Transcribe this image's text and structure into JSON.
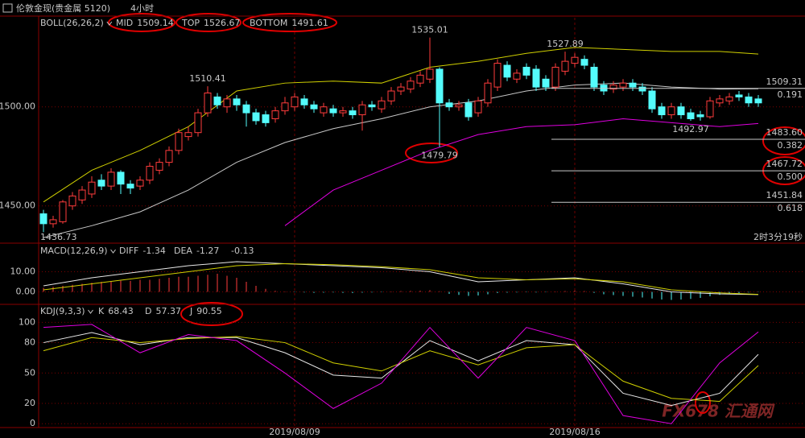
{
  "header": {
    "instrument": "伦敦金现(贵金属 5120)",
    "period": "4小时"
  },
  "watermark": "FX678 汇通网",
  "chart_data": [
    {
      "type": "candlestick",
      "title": "BOLL(26,26,2)",
      "categories": [
        null,
        null,
        null,
        null,
        null,
        null,
        null,
        null,
        null,
        null,
        null,
        null,
        null,
        null,
        null,
        null,
        null,
        null,
        null,
        null,
        null,
        null,
        null,
        null,
        null,
        null,
        "2019/08/09",
        null,
        null,
        null,
        null,
        null,
        null,
        null,
        null,
        null,
        null,
        null,
        null,
        null,
        null,
        null,
        null,
        null,
        null,
        null,
        null,
        null,
        null,
        null,
        null,
        null,
        null,
        null,
        null,
        "2019/08/16",
        null,
        null,
        null,
        null,
        null,
        null,
        null,
        null,
        null,
        null,
        null,
        null,
        null,
        null,
        null,
        null,
        null,
        null,
        null
      ],
      "open": [
        1446,
        1441,
        1442,
        1450,
        1453,
        1456,
        1463,
        1460,
        1467,
        1461,
        1460,
        1463,
        1468,
        1472,
        1478,
        1485,
        1487,
        1497,
        1505,
        1500,
        1504,
        1501,
        1497,
        1496,
        1494,
        1498,
        1500,
        1504,
        1501,
        1497,
        1499,
        1497,
        1498,
        1496,
        1501,
        1499,
        1503,
        1508,
        1509,
        1512,
        1514,
        1519,
        1502,
        1500,
        1502,
        1497,
        1502,
        1510,
        1521,
        1514,
        1520,
        1519,
        1514,
        1510,
        1518,
        1522,
        1524,
        1520,
        1511,
        1509,
        1510,
        1512,
        1510,
        1508,
        1500,
        1496,
        1500,
        1497,
        1496,
        1495,
        1502,
        1503,
        1506,
        1505,
        1504
      ],
      "high": [
        1448,
        1445,
        1453,
        1457,
        1460,
        1465,
        1466,
        1469,
        1468,
        1463,
        1465,
        1472,
        1474,
        1480,
        1489,
        1490,
        1499,
        1510.41,
        1507,
        1506,
        1506,
        1503,
        1499,
        1498,
        1500,
        1505,
        1507,
        1506,
        1503,
        1502,
        1501,
        1500,
        1500,
        1503,
        1503,
        1505,
        1510,
        1512,
        1515,
        1518,
        1535.01,
        1520,
        1504,
        1503,
        1504,
        1505,
        1514,
        1524,
        1523,
        1519,
        1522,
        1521,
        1516,
        1522,
        1527.89,
        1527,
        1526,
        1522,
        1513,
        1513,
        1514,
        1514,
        1512,
        1510,
        1502,
        1502,
        1502,
        1499,
        1498,
        1505,
        1506,
        1507,
        1508,
        1507,
        1506
      ],
      "low": [
        1436.73,
        1439,
        1441,
        1448,
        1451,
        1454,
        1458,
        1458,
        1456,
        1456,
        1458,
        1461,
        1466,
        1470,
        1476,
        1483,
        1485,
        1495,
        1499,
        1497,
        1498,
        1490,
        1491,
        1490,
        1492,
        1496,
        1498,
        1499,
        1497,
        1495,
        1495,
        1495,
        1494,
        1488,
        1498,
        1497,
        1501,
        1506,
        1507,
        1510,
        1512,
        1479.79,
        1498,
        1498,
        1493,
        1495,
        1500,
        1508,
        1513,
        1512,
        1514,
        1508,
        1508,
        1508,
        1516,
        1520,
        1519,
        1508,
        1506,
        1507,
        1508,
        1508,
        1506,
        1497,
        1494,
        1494,
        1494,
        1492.97,
        1493,
        1494,
        1500,
        1501,
        1503,
        1500,
        1500
      ],
      "close": [
        1441,
        1443,
        1452,
        1455,
        1458,
        1462,
        1460,
        1467,
        1461,
        1459,
        1463,
        1470,
        1472,
        1478,
        1487,
        1487,
        1497,
        1507,
        1501,
        1504,
        1501,
        1497,
        1493,
        1492,
        1498,
        1502,
        1505,
        1501,
        1499,
        1500,
        1497,
        1498,
        1496,
        1501,
        1500,
        1503,
        1508,
        1510,
        1513,
        1516,
        1519,
        1502,
        1500,
        1501,
        1495,
        1503,
        1512,
        1522,
        1515,
        1517,
        1516,
        1510,
        1510,
        1520,
        1523,
        1525,
        1521,
        1510,
        1508,
        1511,
        1512,
        1510,
        1508,
        1499,
        1496,
        1500,
        1496,
        1494,
        1495,
        1503,
        1504,
        1505,
        1505,
        1502,
        1502
      ],
      "up_color": "#ff3c3c",
      "down_color": "#54fcfc",
      "ylim": [
        1432,
        1545
      ],
      "yticks": [
        {
          "value": 1450,
          "label": "1450.00"
        },
        {
          "value": 1500,
          "label": "1500.00"
        }
      ],
      "grid": true,
      "bands": {
        "x": [
          0,
          5,
          10,
          15,
          20,
          25,
          30,
          35,
          40,
          45,
          50,
          55,
          60,
          65,
          70,
          74
        ],
        "series": [
          {
            "name": "MID",
            "color": "#c8c8c8",
            "values": [
              1434,
              1440,
              1447,
              1458,
              1472,
              1482,
              1489,
              1494,
              1500,
              1503,
              1508,
              1511,
              1512,
              1510,
              1509,
              1509.14
            ]
          },
          {
            "name": "TOP",
            "color": "#d0d000",
            "values": [
              1452,
              1468,
              1478,
              1490,
              1508,
              1512,
              1513,
              1512,
              1520,
              1523,
              1527,
              1530,
              1529,
              1528,
              1528,
              1526.67
            ]
          },
          {
            "name": "BOTTOM",
            "color": "#e000e0",
            "values": [
              null,
              null,
              null,
              null,
              null,
              1440,
              1458,
              1468,
              1478,
              1486,
              1490,
              1491,
              1494,
              1492,
              1490,
              1491.61
            ]
          }
        ]
      },
      "annotated_highs": [
        17,
        40,
        54
      ],
      "annotated_lows": [
        41,
        67,
        0
      ],
      "levels": [
        {
          "price": 1509.31,
          "ratio": 0.191
        },
        {
          "price": {
            "value": 1483.6,
            "label": "1483.60"
          },
          "ratio": 0.382
        },
        {
          "price": 1467.72,
          "ratio": {
            "value": 0.5,
            "label": "0.500"
          }
        },
        {
          "price": 1451.84,
          "ratio": 0.618
        }
      ],
      "timer": "2时3分19秒"
    },
    {
      "type": "macd",
      "title": "MACD(12,26,9)",
      "x": [
        0,
        5,
        10,
        15,
        20,
        25,
        30,
        35,
        40,
        45,
        50,
        55,
        60,
        65,
        70,
        74
      ],
      "series": [
        {
          "name": "DIFF",
          "color": "#e8e8e8",
          "values": [
            3,
            7,
            10,
            13,
            15,
            14,
            13,
            12,
            10,
            5,
            6,
            7,
            4,
            0,
            -1,
            -1.34
          ]
        },
        {
          "name": "DEA",
          "color": "#d0d000",
          "values": [
            1,
            4,
            7,
            10,
            13,
            14,
            13.5,
            12.5,
            11,
            7,
            6,
            6.5,
            5,
            1,
            -0.5,
            -1.27
          ]
        }
      ],
      "histogram": {
        "up_color": "#ff3c3c",
        "down_color": "#54fcfc",
        "values": [
          2,
          2.5,
          3,
          3.5,
          4,
          4.5,
          5,
          5,
          5.5,
          5.5,
          6,
          6,
          6.5,
          7,
          7.5,
          7.5,
          8,
          8.5,
          9,
          8,
          7,
          5,
          3,
          1.5,
          0.5,
          0.2,
          -0.2,
          -0.3,
          -0.5,
          -0.4,
          -0.3,
          -0.5,
          -0.6,
          -0.4,
          -0.3,
          -0.2,
          0.2,
          0.4,
          0.5,
          0.6,
          0.8,
          0.3,
          -1,
          -1.5,
          -2,
          -1.8,
          -1.2,
          -0.6,
          -0.4,
          -0.3,
          -0.2,
          -0.3,
          -0.2,
          0.2,
          0.4,
          0.6,
          0.4,
          -0.5,
          -1.2,
          -1.6,
          -2,
          -2.4,
          -2.8,
          -3.3,
          -3.8,
          -4,
          -3.8,
          -3.5,
          -3,
          -2.2,
          -1.5,
          -1,
          -0.6,
          -0.3,
          -0.13
        ]
      },
      "ylim": [
        -5.4,
        23.8
      ],
      "yticks": [
        {
          "value": 0,
          "label": "0.00"
        },
        {
          "value": 10,
          "label": "10.00"
        }
      ],
      "grid": true
    },
    {
      "type": "kdj",
      "title": "KDJ(9,3,3)",
      "x": [
        0,
        5,
        10,
        15,
        20,
        25,
        30,
        35,
        40,
        45,
        50,
        55,
        60,
        65,
        70,
        74
      ],
      "series": [
        {
          "name": "K",
          "color": "#e8e8e8",
          "values": [
            80,
            90,
            78,
            85,
            85,
            70,
            48,
            45,
            82,
            62,
            82,
            78,
            30,
            18,
            30,
            68.43
          ]
        },
        {
          "name": "D",
          "color": "#d0d000",
          "values": [
            72,
            85,
            80,
            84,
            86,
            80,
            60,
            52,
            72,
            58,
            75,
            78,
            42,
            25,
            22,
            57.37
          ]
        },
        {
          "name": "J",
          "color": "#e000e0",
          "values": [
            95,
            98,
            70,
            88,
            82,
            50,
            15,
            40,
            95,
            45,
            95,
            82,
            8,
            0,
            60,
            90.55
          ]
        }
      ],
      "ylim": [
        -3,
        117
      ],
      "yticks": [
        0,
        20,
        50,
        80,
        100
      ],
      "grid": true
    }
  ]
}
